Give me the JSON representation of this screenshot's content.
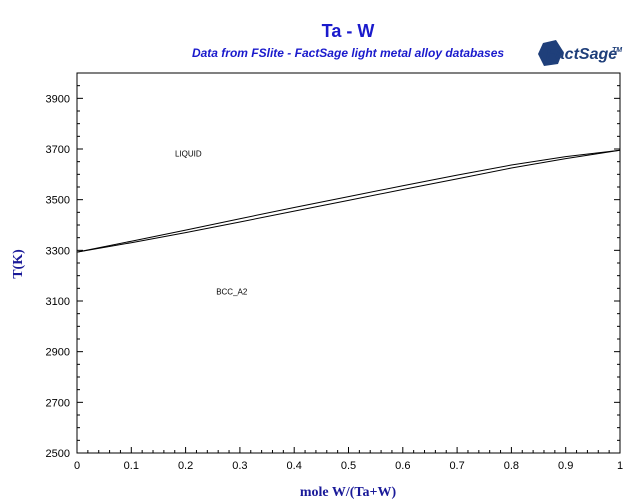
{
  "chart_data": {
    "type": "line",
    "title": "Ta - W",
    "subtitle": "Data from FSlite - FactSage light metal alloy databases",
    "xlabel": "mole W/(Ta+W)",
    "ylabel": "T(K)",
    "xlim": [
      0,
      1
    ],
    "ylim": [
      2500,
      4000
    ],
    "x_ticks": [
      0,
      0.1,
      0.2,
      0.3,
      0.4,
      0.5,
      0.6,
      0.7,
      0.8,
      0.9,
      1
    ],
    "x_tick_labels": [
      "0",
      "0.1",
      "0.2",
      "0.3",
      "0.4",
      "0.5",
      "0.6",
      "0.7",
      "0.8",
      "0.9",
      "1"
    ],
    "y_ticks": [
      2500,
      2700,
      2900,
      3100,
      3300,
      3500,
      3700,
      3900
    ],
    "y_tick_labels": [
      "2500",
      "2700",
      "2900",
      "3100",
      "3300",
      "3500",
      "3700",
      "3900"
    ],
    "grid": false,
    "series": [
      {
        "x": [
          0,
          0.1,
          0.2,
          0.3,
          0.4,
          0.5,
          0.6,
          0.7,
          0.8,
          0.9,
          1
        ],
        "y": [
          3293,
          3336,
          3380,
          3425,
          3469,
          3512,
          3555,
          3597,
          3637,
          3670,
          3695
        ]
      },
      {
        "x": [
          0,
          0.1,
          0.2,
          0.3,
          0.4,
          0.5,
          0.6,
          0.7,
          0.8,
          0.9,
          1
        ],
        "y": [
          3293,
          3330,
          3370,
          3412,
          3455,
          3497,
          3540,
          3582,
          3625,
          3662,
          3695
        ]
      }
    ],
    "annotations": [
      {
        "text": "LIQUID",
        "x": 0.205,
        "y": 3670
      },
      {
        "text": "BCC_A2",
        "x": 0.285,
        "y": 3125
      }
    ],
    "colors": {
      "title": "#1a1acc",
      "subtitle": "#1a1acc",
      "axis_title": "#1a1a99",
      "lines": "#000000",
      "logo": "#1f3f7a"
    }
  },
  "logo": {
    "text": "FactSage",
    "trademark": "TM"
  }
}
